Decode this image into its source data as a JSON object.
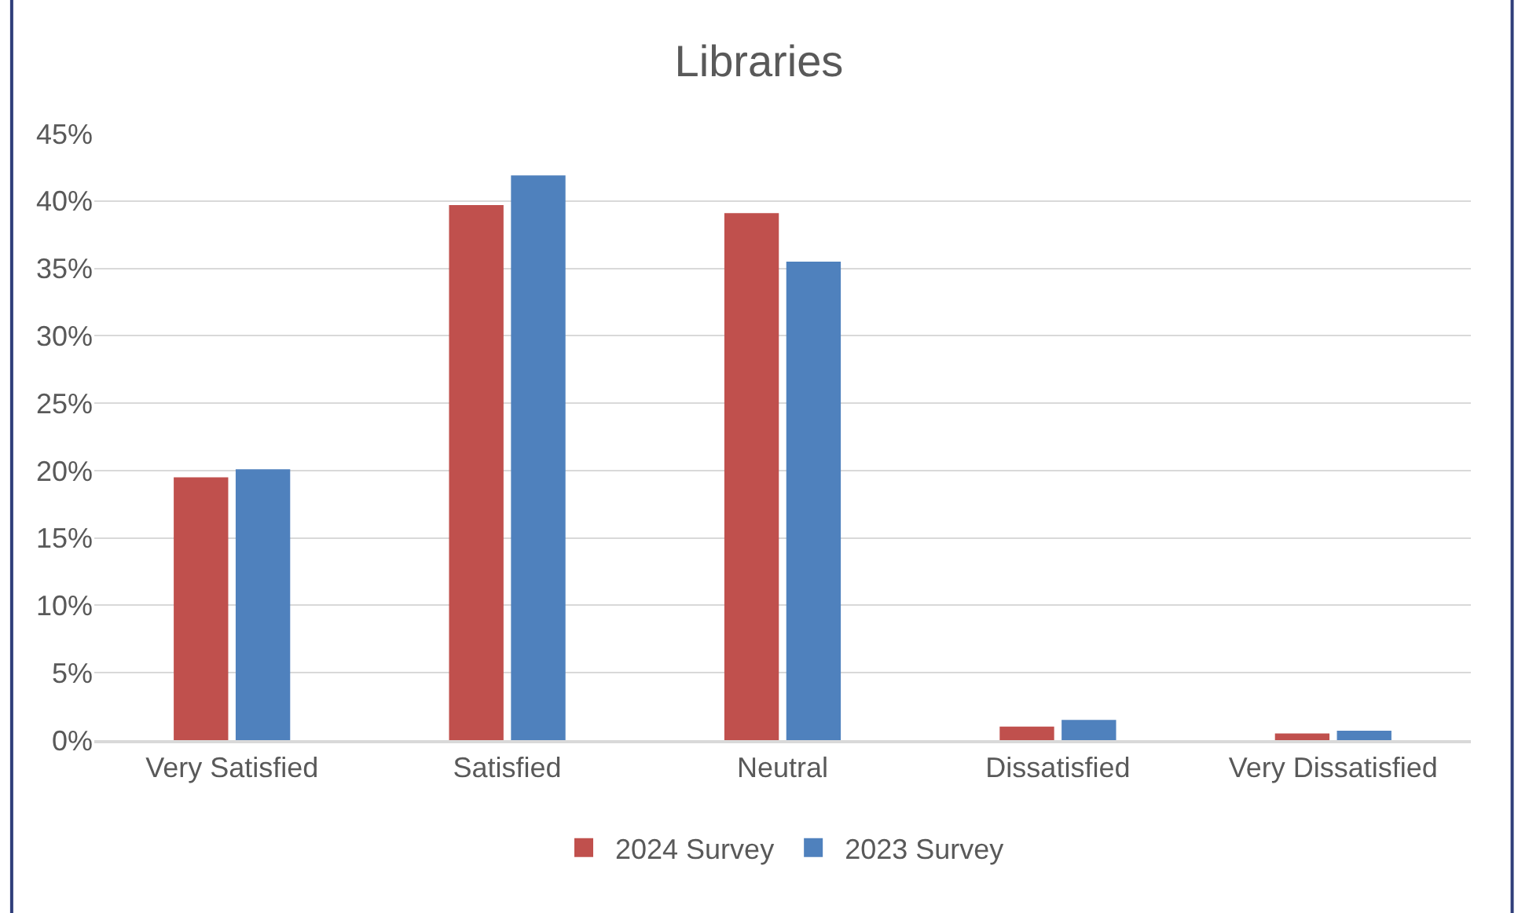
{
  "chart_data": {
    "type": "bar",
    "title": "Libraries",
    "categories": [
      "Very Satisfied",
      "Satisfied",
      "Neutral",
      "Dissatisfied",
      "Very Dissatisfied"
    ],
    "series": [
      {
        "name": "2024 Survey",
        "color": "#c0504d",
        "values": [
          19.5,
          39.7,
          39.1,
          1.0,
          0.5
        ]
      },
      {
        "name": "2023 Survey",
        "color": "#4f81bd",
        "values": [
          20.1,
          41.9,
          35.5,
          1.5,
          0.7
        ]
      }
    ],
    "ylim": [
      0,
      45
    ],
    "yticks": [
      {
        "value": 0,
        "label": "0%"
      },
      {
        "value": 5,
        "label": "5%"
      },
      {
        "value": 10,
        "label": "10%"
      },
      {
        "value": 15,
        "label": "15%"
      },
      {
        "value": 20,
        "label": "20%"
      },
      {
        "value": 25,
        "label": "25%"
      },
      {
        "value": 30,
        "label": "30%"
      },
      {
        "value": 35,
        "label": "35%"
      },
      {
        "value": 40,
        "label": "40%"
      },
      {
        "value": 45,
        "label": "45%"
      }
    ],
    "grid": "y",
    "legend": "bottom"
  }
}
